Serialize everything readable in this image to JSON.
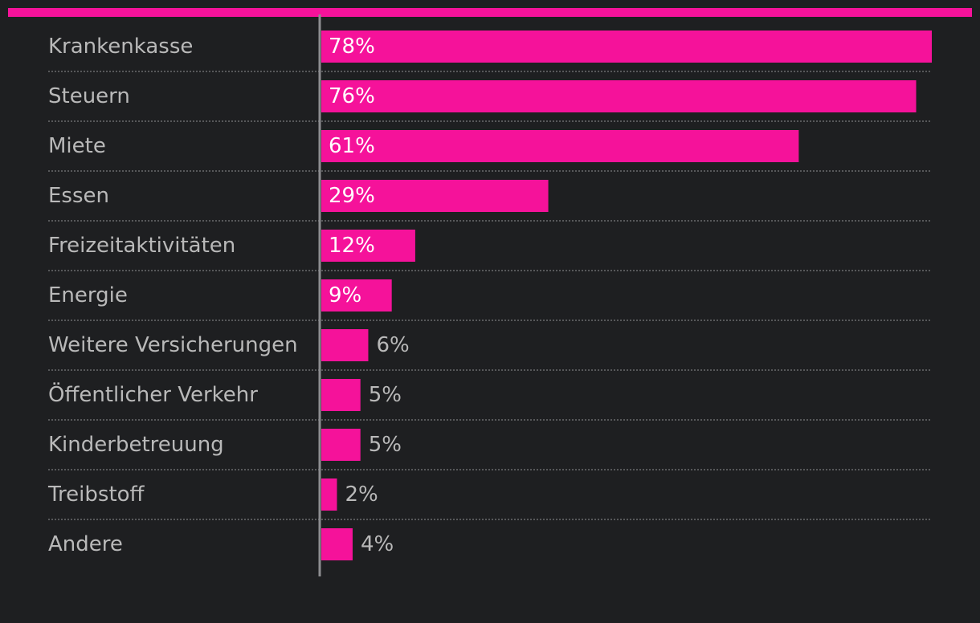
{
  "colors": {
    "background": "#1e1f21",
    "accent": "#f5129a",
    "label": "#b9b9b9",
    "value_inside": "#ffffff"
  },
  "chart_data": {
    "type": "bar",
    "orientation": "horizontal",
    "title": "",
    "xlabel": "",
    "ylabel": "",
    "xlim": [
      0,
      78
    ],
    "unit": "%",
    "categories": [
      "Krankenkasse",
      "Steuern",
      "Miete",
      "Essen",
      "Freizeitaktivitäten",
      "Energie",
      "Weitere Versicherungen",
      "Öffentlicher Verkehr",
      "Kinderbetreuung",
      "Treibstoff",
      "Andere"
    ],
    "values": [
      78,
      76,
      61,
      29,
      12,
      9,
      6,
      5,
      5,
      2,
      4
    ],
    "value_labels": [
      "78%",
      "76%",
      "61%",
      "29%",
      "12%",
      "9%",
      "6%",
      "5%",
      "5%",
      "2%",
      "4%"
    ]
  }
}
